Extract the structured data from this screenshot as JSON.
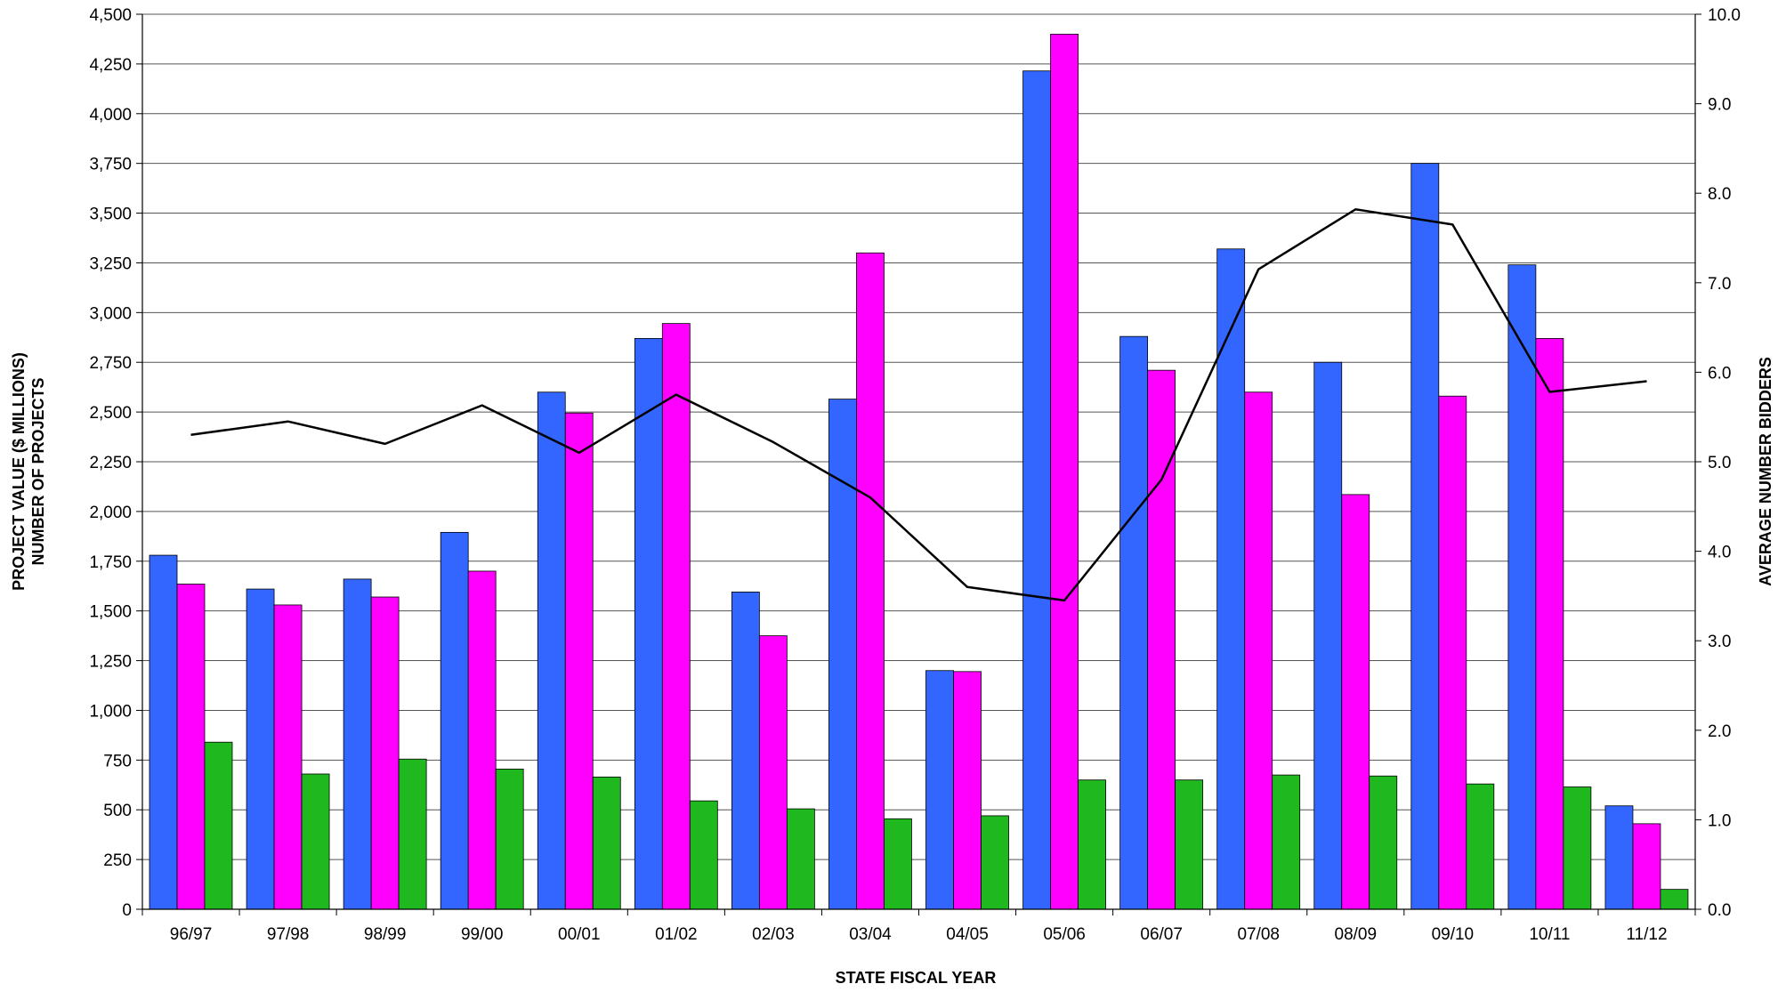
{
  "chart_data": {
    "type": "bar",
    "xlabel": "STATE FISCAL YEAR",
    "ylabel_left_line1": "PROJECT VALUE ($ MILLIONS)",
    "ylabel_left_line2": "NUMBER OF PROJECTS",
    "ylabel_right": "AVERAGE NUMBER BIDDERS",
    "ylim_left": [
      0,
      4500
    ],
    "ylim_right": [
      0,
      10
    ],
    "yticks_left": [
      "0",
      "250",
      "500",
      "750",
      "1,000",
      "1,250",
      "1,500",
      "1,750",
      "2,000",
      "2,250",
      "2,500",
      "2,750",
      "3,000",
      "3,250",
      "3,500",
      "3,750",
      "4,000",
      "4,250",
      "4,500"
    ],
    "yticks_right": [
      "0.0",
      "1.0",
      "2.0",
      "3.0",
      "4.0",
      "5.0",
      "6.0",
      "7.0",
      "8.0",
      "9.0",
      "10.0"
    ],
    "grid": true,
    "categories": [
      "96/97",
      "97/98",
      "98/99",
      "99/00",
      "00/01",
      "01/02",
      "02/03",
      "03/04",
      "04/05",
      "05/06",
      "06/07",
      "07/08",
      "08/09",
      "09/10",
      "10/11",
      "11/12"
    ],
    "series": [
      {
        "type": "bar",
        "axis": "left",
        "color": "#3366ff",
        "values": [
          1780,
          1610,
          1660,
          1895,
          2600,
          2870,
          1595,
          2565,
          1200,
          4215,
          2880,
          3320,
          2750,
          3750,
          3240,
          520
        ]
      },
      {
        "type": "bar",
        "axis": "left",
        "color": "#ff00ff",
        "values": [
          1635,
          1530,
          1570,
          1700,
          2495,
          2945,
          1375,
          3300,
          1195,
          4400,
          2710,
          2600,
          2085,
          2580,
          2870,
          430
        ]
      },
      {
        "type": "bar",
        "axis": "left",
        "color": "#1fb81f",
        "values": [
          840,
          680,
          755,
          705,
          665,
          545,
          505,
          455,
          470,
          650,
          650,
          675,
          670,
          630,
          615,
          100
        ]
      },
      {
        "type": "line",
        "axis": "right",
        "color": "#000000",
        "values": [
          5.3,
          5.45,
          5.2,
          5.63,
          5.1,
          5.75,
          5.22,
          4.6,
          3.6,
          3.45,
          4.8,
          7.15,
          7.82,
          7.65,
          5.78,
          5.9
        ]
      }
    ]
  }
}
